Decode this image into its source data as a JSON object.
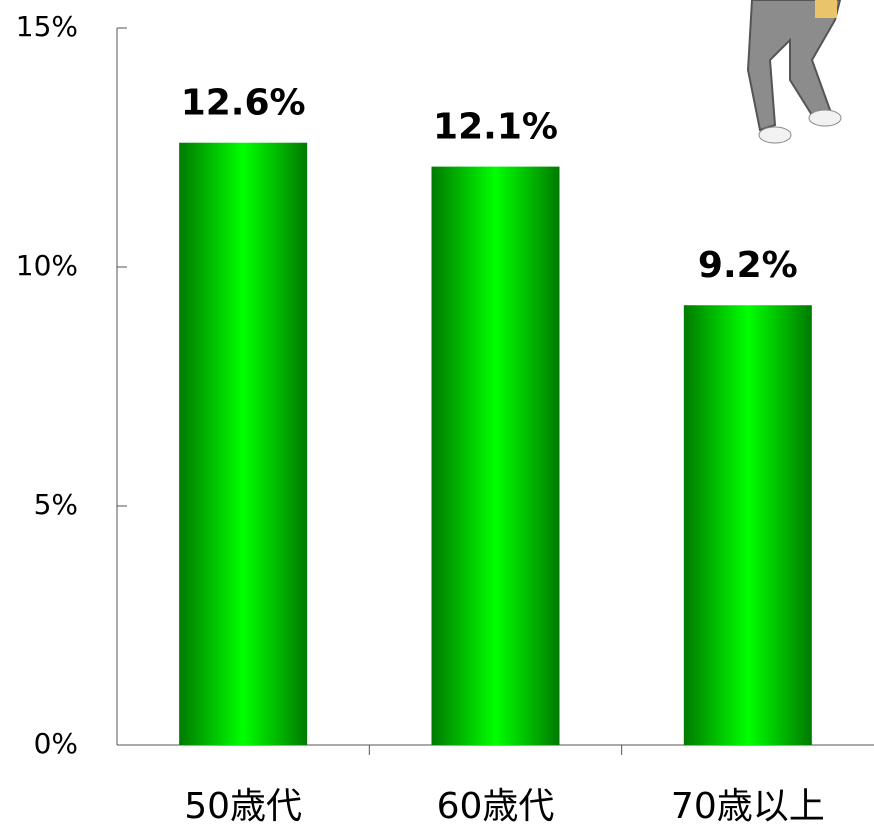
{
  "chart_data": {
    "type": "bar",
    "categories": [
      "50歳代",
      "60歳代",
      "70歳以上"
    ],
    "values": [
      12.6,
      12.1,
      9.2
    ],
    "value_labels": [
      "12.6%",
      "12.1%",
      "9.2%"
    ],
    "color": "#00ff00",
    "ylim": [
      0,
      15
    ],
    "yticks": [
      {
        "value": 0,
        "label": "0%"
      },
      {
        "value": 5,
        "label": "5%"
      },
      {
        "value": 10,
        "label": "10%"
      },
      {
        "value": 15,
        "label": "15%"
      }
    ],
    "grid": false
  }
}
